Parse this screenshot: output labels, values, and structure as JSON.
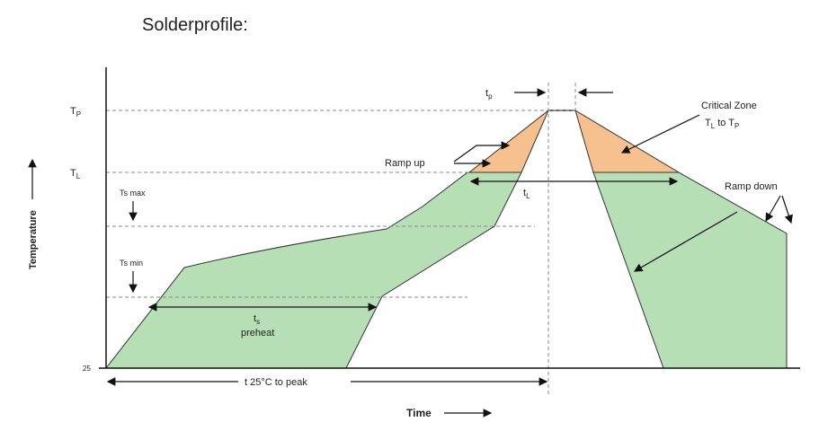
{
  "title": "Solderprofile:",
  "axes": {
    "y_label": "Temperature",
    "x_label": "Time"
  },
  "levels": {
    "tp": {
      "main": "T",
      "sub": "P"
    },
    "tl": {
      "main": "T",
      "sub": "L"
    },
    "ts_max": "Ts max",
    "ts_min": "Ts min",
    "ambient": "25"
  },
  "annotations": {
    "tp_time": {
      "main": "t",
      "sub": "p"
    },
    "critical_zone": "Critical Zone",
    "critical_range": {
      "a": "T",
      "a_sub": "L",
      "mid": " to ",
      "b": "T",
      "b_sub": "P"
    },
    "ramp_up": "Ramp up",
    "tl_time": {
      "main": "t",
      "sub": "L"
    },
    "ramp_down": "Ramp down",
    "ts_time": {
      "main": "t",
      "sub": "s"
    },
    "preheat": "preheat",
    "total_time": "t 25°C to peak"
  }
}
